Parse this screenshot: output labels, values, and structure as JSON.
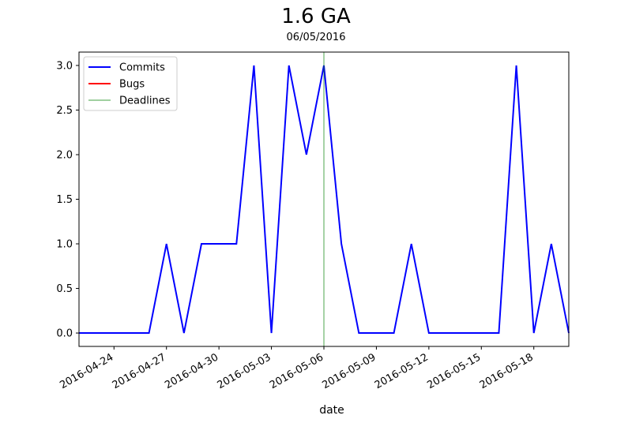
{
  "title": "1.6 GA",
  "subtitle": "06/05/2016",
  "chart_data": {
    "type": "line",
    "title": "1.6 GA",
    "subtitle": "06/05/2016",
    "xlabel": "date",
    "ylabel": "",
    "x_start": "2016-04-22",
    "x_end": "2016-05-20",
    "ylim": [
      -0.15,
      3.15
    ],
    "yticks": [
      0.0,
      0.5,
      1.0,
      1.5,
      2.0,
      2.5,
      3.0
    ],
    "ytick_labels": [
      "0.0",
      "0.5",
      "1.0",
      "1.5",
      "2.0",
      "2.5",
      "3.0"
    ],
    "xticks": [
      "2016-04-24",
      "2016-04-27",
      "2016-04-30",
      "2016-05-03",
      "2016-05-06",
      "2016-05-09",
      "2016-05-12",
      "2016-05-15",
      "2016-05-18"
    ],
    "grid": false,
    "legend_position": "top-left",
    "series": [
      {
        "name": "Commits",
        "color": "#0000ff",
        "x": [
          "2016-04-22",
          "2016-04-23",
          "2016-04-24",
          "2016-04-25",
          "2016-04-26",
          "2016-04-27",
          "2016-04-28",
          "2016-04-29",
          "2016-04-30",
          "2016-05-01",
          "2016-05-02",
          "2016-05-03",
          "2016-05-04",
          "2016-05-05",
          "2016-05-06",
          "2016-05-07",
          "2016-05-08",
          "2016-05-09",
          "2016-05-10",
          "2016-05-11",
          "2016-05-12",
          "2016-05-13",
          "2016-05-14",
          "2016-05-15",
          "2016-05-16",
          "2016-05-17",
          "2016-05-18",
          "2016-05-19",
          "2016-05-20"
        ],
        "values": [
          0,
          0,
          0,
          0,
          0,
          1,
          0,
          1,
          1,
          1,
          3,
          0,
          3,
          2,
          3,
          1,
          0,
          0,
          0,
          1,
          0,
          0,
          0,
          0,
          0,
          3,
          0,
          1,
          0
        ]
      },
      {
        "name": "Bugs",
        "color": "#ff0000",
        "x": [],
        "values": []
      }
    ],
    "vlines": [
      {
        "name": "Deadlines",
        "color": "#008000",
        "x": "2016-05-06"
      }
    ]
  }
}
